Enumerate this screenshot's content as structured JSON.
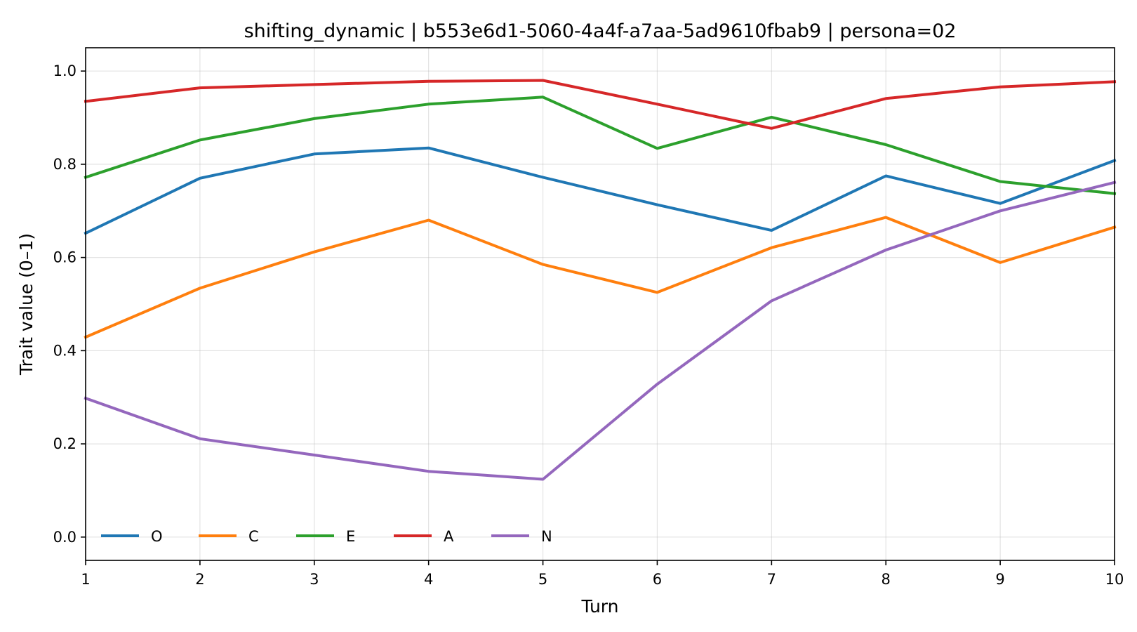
{
  "chart_data": {
    "type": "line",
    "title": "shifting_dynamic | b553e6d1-5060-4a4f-a7aa-5ad9610fbab9 | persona=02",
    "xlabel": "Turn",
    "ylabel": "Trait value (0–1)",
    "x": [
      1,
      2,
      3,
      4,
      5,
      6,
      7,
      8,
      9,
      10
    ],
    "xlim": [
      1,
      10
    ],
    "ylim": [
      -0.05,
      1.05
    ],
    "xticks": [
      1,
      2,
      3,
      4,
      5,
      6,
      7,
      8,
      9,
      10
    ],
    "xtick_labels": [
      "1",
      "2",
      "3",
      "4",
      "5",
      "6",
      "7",
      "8",
      "9",
      "10"
    ],
    "yticks": [
      0.0,
      0.2,
      0.4,
      0.6,
      0.8,
      1.0
    ],
    "ytick_labels": [
      "0.0",
      "0.2",
      "0.4",
      "0.6",
      "0.8",
      "1.0"
    ],
    "grid": true,
    "legend_position": "bottom-left",
    "series": [
      {
        "name": "O",
        "color": "#1f77b4",
        "values": [
          0.652,
          0.77,
          0.822,
          0.835,
          0.772,
          0.713,
          0.658,
          0.775,
          0.716,
          0.808
        ]
      },
      {
        "name": "C",
        "color": "#ff7f0e",
        "values": [
          0.429,
          0.534,
          0.612,
          0.68,
          0.585,
          0.525,
          0.621,
          0.686,
          0.589,
          0.665
        ]
      },
      {
        "name": "E",
        "color": "#2ca02c",
        "values": [
          0.772,
          0.852,
          0.898,
          0.929,
          0.944,
          0.834,
          0.901,
          0.842,
          0.763,
          0.737
        ]
      },
      {
        "name": "A",
        "color": "#d62728",
        "values": [
          0.935,
          0.964,
          0.971,
          0.978,
          0.98,
          0.929,
          0.877,
          0.941,
          0.966,
          0.977
        ]
      },
      {
        "name": "N",
        "color": "#9467bd",
        "values": [
          0.298,
          0.211,
          0.176,
          0.141,
          0.124,
          0.328,
          0.507,
          0.616,
          0.7,
          0.761
        ]
      }
    ]
  }
}
